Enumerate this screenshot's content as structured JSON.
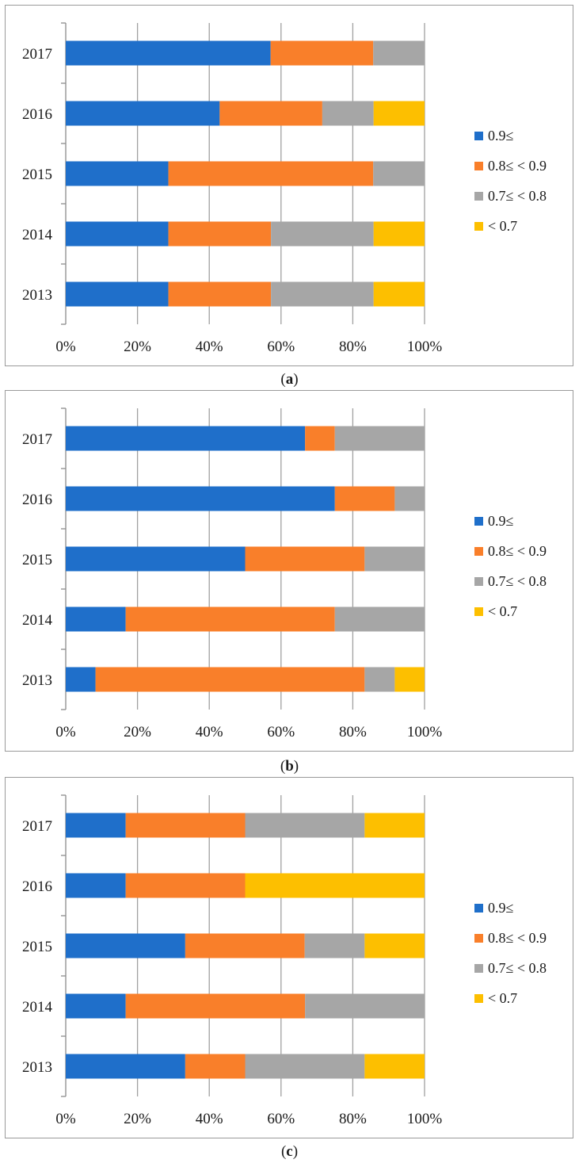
{
  "chart_data": [
    {
      "type": "bar",
      "stacked": true,
      "orientation": "horizontal",
      "percent": true,
      "panel_label": "a",
      "categories": [
        "2017",
        "2016",
        "2015",
        "2014",
        "2013"
      ],
      "x_ticks": [
        "0%",
        "20%",
        "40%",
        "60%",
        "80%",
        "100%"
      ],
      "xlim": [
        0,
        100
      ],
      "grid": true,
      "legend_position": "right",
      "series": [
        {
          "name": "0.9≤",
          "color": "#1f6fca",
          "values": [
            57.1,
            42.9,
            28.6,
            28.6,
            28.6
          ]
        },
        {
          "name": "0.8≤ < 0.9",
          "color": "#f97f2a",
          "values": [
            28.6,
            28.6,
            57.1,
            28.6,
            28.6
          ]
        },
        {
          "name": "0.7≤ < 0.8",
          "color": "#a6a6a6",
          "values": [
            14.3,
            14.3,
            14.3,
            28.6,
            28.6
          ]
        },
        {
          "name": "< 0.7",
          "color": "#fdbf00",
          "values": [
            0,
            14.2,
            0,
            14.2,
            14.2
          ]
        }
      ]
    },
    {
      "type": "bar",
      "stacked": true,
      "orientation": "horizontal",
      "percent": true,
      "panel_label": "b",
      "categories": [
        "2017",
        "2016",
        "2015",
        "2014",
        "2013"
      ],
      "x_ticks": [
        "0%",
        "20%",
        "40%",
        "60%",
        "80%",
        "100%"
      ],
      "xlim": [
        0,
        100
      ],
      "grid": true,
      "legend_position": "right",
      "series": [
        {
          "name": "0.9≤",
          "color": "#1f6fca",
          "values": [
            66.7,
            75.0,
            50.0,
            16.7,
            8.3
          ]
        },
        {
          "name": "0.8≤ < 0.9",
          "color": "#f97f2a",
          "values": [
            8.3,
            16.7,
            33.3,
            58.3,
            75.0
          ]
        },
        {
          "name": "0.7≤ < 0.8",
          "color": "#a6a6a6",
          "values": [
            25.0,
            8.3,
            16.7,
            25.0,
            8.4
          ]
        },
        {
          "name": "< 0.7",
          "color": "#fdbf00",
          "values": [
            0,
            0,
            0,
            0,
            8.3
          ]
        }
      ]
    },
    {
      "type": "bar",
      "stacked": true,
      "orientation": "horizontal",
      "percent": true,
      "panel_label": "c",
      "categories": [
        "2017",
        "2016",
        "2015",
        "2014",
        "2013"
      ],
      "x_ticks": [
        "0%",
        "20%",
        "40%",
        "60%",
        "80%",
        "100%"
      ],
      "xlim": [
        0,
        100
      ],
      "grid": true,
      "legend_position": "right",
      "series": [
        {
          "name": "0.9≤",
          "color": "#1f6fca",
          "values": [
            16.7,
            16.7,
            33.3,
            16.7,
            33.3
          ]
        },
        {
          "name": "0.8≤ < 0.9",
          "color": "#f97f2a",
          "values": [
            33.3,
            33.3,
            33.3,
            50.0,
            16.7
          ]
        },
        {
          "name": "0.7≤ < 0.8",
          "color": "#a6a6a6",
          "values": [
            33.3,
            0,
            16.7,
            33.3,
            33.3
          ]
        },
        {
          "name": "< 0.7",
          "color": "#fdbf00",
          "values": [
            16.7,
            50.0,
            16.7,
            0,
            16.7
          ]
        }
      ]
    }
  ]
}
